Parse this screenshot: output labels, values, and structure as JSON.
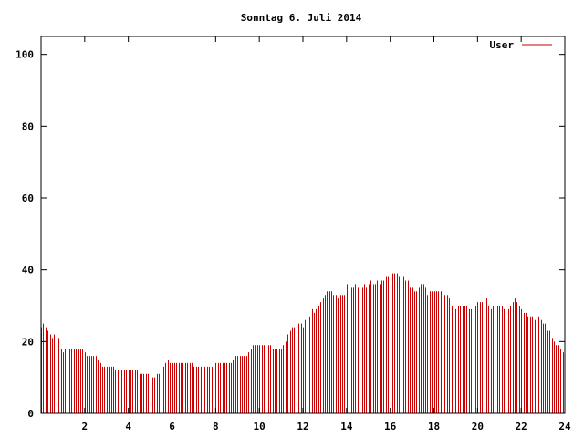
{
  "chart_data": {
    "type": "bar",
    "title": "Sonntag 6. Juli 2014",
    "xlabel": "",
    "ylabel": "",
    "xlim": [
      0,
      24
    ],
    "ylim": [
      0,
      105
    ],
    "xticks": [
      2,
      4,
      6,
      8,
      10,
      12,
      14,
      16,
      18,
      20,
      22,
      24
    ],
    "yticks": [
      0,
      20,
      40,
      60,
      80,
      100
    ],
    "grid": false,
    "legend_position": "top-right",
    "series": [
      {
        "name": "User",
        "color": "#cc0000",
        "x": [
          0.0,
          0.1,
          0.2,
          0.3,
          0.4,
          0.5,
          0.6,
          0.7,
          0.8,
          0.9,
          1.0,
          1.1,
          1.2,
          1.3,
          1.4,
          1.5,
          1.6,
          1.7,
          1.8,
          1.9,
          2.0,
          2.1,
          2.2,
          2.3,
          2.4,
          2.5,
          2.6,
          2.7,
          2.8,
          2.9,
          3.0,
          3.1,
          3.2,
          3.3,
          3.4,
          3.5,
          3.6,
          3.7,
          3.8,
          3.9,
          4.0,
          4.1,
          4.2,
          4.3,
          4.4,
          4.5,
          4.6,
          4.7,
          4.8,
          4.9,
          5.0,
          5.1,
          5.2,
          5.3,
          5.4,
          5.5,
          5.6,
          5.7,
          5.8,
          5.9,
          6.0,
          6.1,
          6.2,
          6.3,
          6.4,
          6.5,
          6.6,
          6.7,
          6.8,
          6.9,
          7.0,
          7.1,
          7.2,
          7.3,
          7.4,
          7.5,
          7.6,
          7.7,
          7.8,
          7.9,
          8.0,
          8.1,
          8.2,
          8.3,
          8.4,
          8.5,
          8.6,
          8.7,
          8.8,
          8.9,
          9.0,
          9.1,
          9.2,
          9.3,
          9.4,
          9.5,
          9.6,
          9.7,
          9.8,
          9.9,
          10.0,
          10.1,
          10.2,
          10.3,
          10.4,
          10.5,
          10.6,
          10.7,
          10.8,
          10.9,
          11.0,
          11.1,
          11.2,
          11.3,
          11.4,
          11.5,
          11.6,
          11.7,
          11.8,
          11.9,
          12.0,
          12.1,
          12.2,
          12.3,
          12.4,
          12.5,
          12.6,
          12.7,
          12.8,
          12.9,
          13.0,
          13.1,
          13.2,
          13.3,
          13.4,
          13.5,
          13.6,
          13.7,
          13.8,
          13.9,
          14.0,
          14.1,
          14.2,
          14.3,
          14.4,
          14.5,
          14.6,
          14.7,
          14.8,
          14.9,
          15.0,
          15.1,
          15.2,
          15.3,
          15.4,
          15.5,
          15.6,
          15.7,
          15.8,
          15.9,
          16.0,
          16.1,
          16.2,
          16.3,
          16.4,
          16.5,
          16.6,
          16.7,
          16.8,
          16.9,
          17.0,
          17.1,
          17.2,
          17.3,
          17.4,
          17.5,
          17.6,
          17.7,
          17.8,
          17.9,
          18.0,
          18.1,
          18.2,
          18.3,
          18.4,
          18.5,
          18.6,
          18.7,
          18.8,
          18.9,
          19.0,
          19.1,
          19.2,
          19.3,
          19.4,
          19.5,
          19.6,
          19.7,
          19.8,
          19.9,
          20.0,
          20.1,
          20.2,
          20.3,
          20.4,
          20.5,
          20.6,
          20.7,
          20.8,
          20.9,
          21.0,
          21.1,
          21.2,
          21.3,
          21.4,
          21.5,
          21.6,
          21.7,
          21.8,
          21.9,
          22.0,
          22.1,
          22.2,
          22.3,
          22.4,
          22.5,
          22.6,
          22.7,
          22.8,
          22.9,
          23.0,
          23.1,
          23.2,
          23.3,
          23.4,
          23.5,
          23.6,
          23.7,
          23.8,
          23.9
        ],
        "values": [
          24,
          25,
          24,
          23,
          22,
          21,
          22,
          21,
          21,
          18,
          17,
          18,
          17,
          18,
          18,
          18,
          18,
          18,
          18,
          18,
          17,
          16,
          16,
          16,
          16,
          16,
          15,
          14,
          13,
          13,
          13,
          13,
          13,
          13,
          12,
          12,
          12,
          12,
          12,
          12,
          12,
          12,
          12,
          12,
          12,
          11,
          11,
          11,
          11,
          11,
          11,
          10,
          10,
          11,
          11,
          12,
          13,
          14,
          15,
          14,
          14,
          14,
          14,
          14,
          14,
          14,
          14,
          14,
          14,
          14,
          13,
          13,
          13,
          13,
          13,
          13,
          13,
          13,
          13,
          14,
          14,
          14,
          14,
          14,
          14,
          14,
          14,
          14,
          15,
          16,
          16,
          16,
          16,
          16,
          16,
          17,
          18,
          19,
          19,
          19,
          19,
          19,
          19,
          19,
          19,
          19,
          18,
          18,
          18,
          18,
          18,
          19,
          20,
          22,
          23,
          24,
          24,
          24,
          25,
          25,
          24,
          26,
          26,
          27,
          29,
          28,
          29,
          30,
          31,
          32,
          33,
          34,
          34,
          34,
          33,
          33,
          32,
          33,
          33,
          33,
          36,
          36,
          35,
          35,
          36,
          35,
          35,
          35,
          36,
          35,
          36,
          37,
          36,
          36,
          37,
          36,
          37,
          37,
          38,
          38,
          38,
          39,
          39,
          39,
          38,
          38,
          38,
          37,
          37,
          35,
          35,
          34,
          34,
          35,
          36,
          36,
          35,
          33,
          34,
          34,
          34,
          34,
          34,
          34,
          34,
          33,
          33,
          32,
          30,
          29,
          29,
          30,
          30,
          30,
          30,
          30,
          29,
          29,
          30,
          30,
          31,
          31,
          31,
          32,
          32,
          30,
          29,
          30,
          30,
          30,
          30,
          30,
          29,
          30,
          29,
          30,
          31,
          32,
          31,
          30,
          29,
          28,
          28,
          27,
          27,
          27,
          26,
          26,
          27,
          26,
          25,
          25,
          23,
          23,
          21,
          20,
          19,
          19,
          18,
          17
        ]
      }
    ]
  }
}
